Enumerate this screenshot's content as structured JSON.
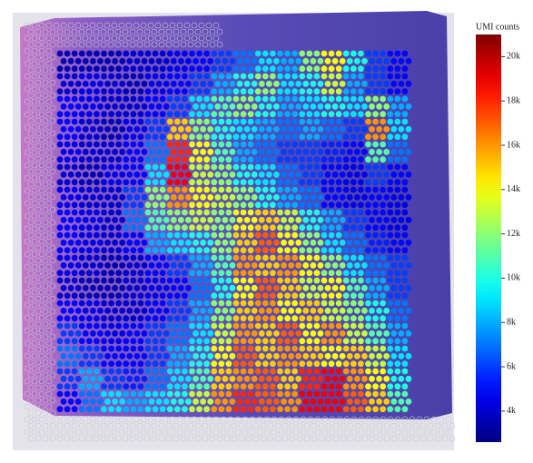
{
  "chart_data": {
    "type": "heatmap",
    "colorbar_title": "UMI counts",
    "colormap": "jet",
    "ylim": [
      2600,
      21000
    ],
    "yticks": [
      {
        "value": 4000,
        "label": "4k"
      },
      {
        "value": 6000,
        "label": "6k"
      },
      {
        "value": 8000,
        "label": "8k"
      },
      {
        "value": 10000,
        "label": "10k"
      },
      {
        "value": 12000,
        "label": "12k"
      },
      {
        "value": 14000,
        "label": "14k"
      },
      {
        "value": 16000,
        "label": "16k"
      },
      {
        "value": 18000,
        "label": "18k"
      },
      {
        "value": 20000,
        "label": "20k"
      }
    ],
    "values": [
      [
        3500,
        3500,
        3500,
        4000,
        4000,
        4500,
        5000,
        6000,
        7000,
        9000,
        8000,
        12000,
        14000,
        10000,
        6000,
        5000
      ],
      [
        4000,
        4500,
        4000,
        3500,
        4500,
        5000,
        6000,
        8000,
        10000,
        12000,
        9000,
        10000,
        13000,
        8000,
        6000,
        5000
      ],
      [
        5000,
        4500,
        4000,
        4000,
        5000,
        6000,
        9000,
        11000,
        12000,
        10000,
        8000,
        9000,
        10000,
        9000,
        12000,
        8000
      ],
      [
        5000,
        4000,
        3500,
        4500,
        6000,
        15000,
        12000,
        10000,
        9000,
        8000,
        7000,
        8000,
        7000,
        6000,
        16000,
        9000
      ],
      [
        4500,
        4000,
        4000,
        5000,
        7000,
        18000,
        14000,
        11000,
        8000,
        7000,
        6000,
        6000,
        5500,
        5000,
        11000,
        7000
      ],
      [
        4000,
        3500,
        4500,
        5000,
        9000,
        19000,
        13000,
        12000,
        10000,
        9000,
        7000,
        6000,
        5000,
        4500,
        6000,
        5000
      ],
      [
        4500,
        4000,
        4000,
        6000,
        12000,
        16000,
        14000,
        13000,
        12000,
        10000,
        8000,
        7000,
        5000,
        4500,
        5000,
        4500
      ],
      [
        5000,
        4500,
        4000,
        7000,
        11000,
        12000,
        13000,
        12000,
        14000,
        15000,
        13000,
        10000,
        8000,
        6000,
        5000,
        4500
      ],
      [
        5000,
        4500,
        4000,
        5000,
        8000,
        9000,
        10000,
        12000,
        15000,
        17000,
        14000,
        12000,
        9000,
        7000,
        5500,
        5000
      ],
      [
        4500,
        4000,
        3500,
        4000,
        5000,
        6000,
        8000,
        11000,
        16000,
        15000,
        16000,
        14000,
        12000,
        9000,
        7000,
        6000
      ],
      [
        4000,
        3500,
        3500,
        4000,
        4500,
        5000,
        7000,
        10000,
        14000,
        17000,
        15000,
        13000,
        14000,
        11000,
        8000,
        6000
      ],
      [
        5000,
        4500,
        4000,
        4000,
        5000,
        6000,
        8000,
        12000,
        15000,
        16000,
        14000,
        15000,
        13000,
        12000,
        10000,
        7000
      ],
      [
        6000,
        5000,
        4500,
        5000,
        6000,
        7000,
        9000,
        13000,
        16000,
        15000,
        17000,
        14000,
        16000,
        13000,
        11000,
        8000
      ],
      [
        7000,
        6000,
        5000,
        5000,
        6000,
        8000,
        10000,
        14000,
        17000,
        15000,
        16000,
        15000,
        14000,
        15000,
        13000,
        9000
      ],
      [
        6000,
        8000,
        6000,
        5500,
        7000,
        9000,
        11000,
        15000,
        16000,
        17000,
        15000,
        18000,
        19000,
        16000,
        14000,
        10000
      ],
      [
        5000,
        7000,
        9000,
        8000,
        9000,
        10000,
        13000,
        16000,
        18000,
        17000,
        16000,
        19000,
        19000,
        17000,
        15000,
        11000
      ]
    ]
  }
}
